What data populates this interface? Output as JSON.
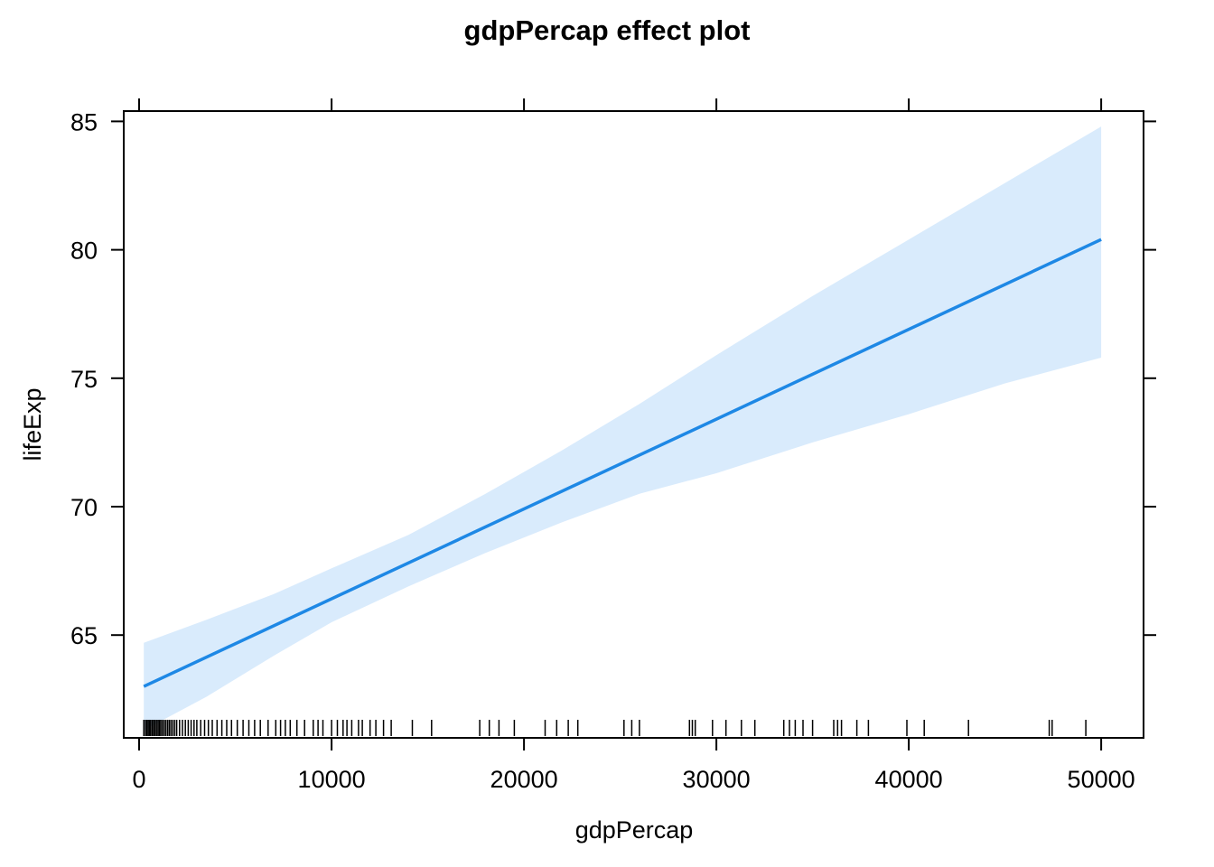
{
  "chart_data": {
    "type": "line",
    "title": "gdpPercap effect plot",
    "xlabel": "gdpPercap",
    "ylabel": "lifeExp",
    "xlim": [
      -800,
      52200
    ],
    "ylim": [
      61,
      85.4
    ],
    "x_ticks": [
      0,
      10000,
      20000,
      30000,
      40000,
      50000
    ],
    "y_ticks": [
      65,
      70,
      75,
      80,
      85
    ],
    "x_tick_labels": [
      "0",
      "10000",
      "20000",
      "30000",
      "40000",
      "50000"
    ],
    "y_tick_labels": [
      "65",
      "70",
      "75",
      "80",
      "85"
    ],
    "grid": false,
    "series": [
      {
        "x": [
          241,
          50000
        ],
        "y": [
          63.0,
          80.4
        ]
      }
    ],
    "confidence_band": {
      "x": [
        241,
        3500,
        7000,
        10000,
        14000,
        18000,
        22000,
        26000,
        30000,
        35000,
        40000,
        45000,
        50000
      ],
      "upper": [
        64.7,
        65.6,
        66.6,
        67.6,
        68.9,
        70.5,
        72.2,
        74.0,
        75.9,
        78.2,
        80.4,
        82.6,
        84.8
      ],
      "lower": [
        61.3,
        62.6,
        64.2,
        65.5,
        66.9,
        68.2,
        69.4,
        70.5,
        71.3,
        72.5,
        73.6,
        74.8,
        75.8
      ]
    },
    "rug_x": [
      241,
      330,
      400,
      470,
      540,
      600,
      680,
      750,
      820,
      900,
      980,
      1050,
      1120,
      1200,
      1290,
      1380,
      1470,
      1560,
      1650,
      1750,
      1850,
      1950,
      2100,
      2250,
      2400,
      2550,
      2700,
      2850,
      3000,
      3200,
      3400,
      3600,
      3800,
      4050,
      4300,
      4550,
      4800,
      5100,
      5400,
      5700,
      6000,
      6300,
      6700,
      7100,
      7350,
      7600,
      7850,
      8200,
      8600,
      9050,
      9300,
      9550,
      10000,
      10300,
      10600,
      10800,
      11050,
      11400,
      11600,
      12000,
      12300,
      12700,
      13100,
      14200,
      15200,
      17700,
      18200,
      18700,
      19500,
      21100,
      21700,
      22300,
      22800,
      25200,
      25600,
      26000,
      28600,
      28750,
      28900,
      29800,
      30500,
      31300,
      32000,
      33500,
      33800,
      34100,
      34500,
      35000,
      36100,
      36300,
      36500,
      37300,
      37900,
      39900,
      40800,
      43100,
      47300,
      47450,
      49200
    ],
    "colors": {
      "line": "#1e88e5",
      "band": "#d9ebfc",
      "axes": "#000000"
    }
  }
}
